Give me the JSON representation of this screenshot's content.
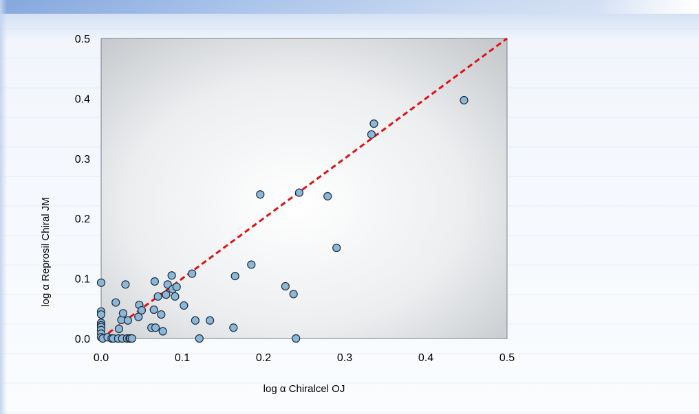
{
  "chart_data": {
    "type": "scatter",
    "xlabel": "log α Chiralcel OJ",
    "ylabel": "log α Reprosil Chiral JM",
    "xlim": [
      0,
      0.5
    ],
    "ylim": [
      0,
      0.5
    ],
    "x_ticks": [
      "0.0",
      "0.1",
      "0.2",
      "0.3",
      "0.4",
      "0.5"
    ],
    "y_ticks": [
      "0.0",
      "0.1",
      "0.2",
      "0.3",
      "0.4",
      "0.5"
    ],
    "grid": false,
    "legend": "none",
    "reference_line": {
      "type": "y=x",
      "color": "#e01010",
      "style": "dashed",
      "from": [
        0,
        0
      ],
      "to": [
        0.5,
        0.5
      ]
    },
    "marker": {
      "fill": "#8ab8d8",
      "stroke": "#1e2a3a"
    },
    "series": [
      {
        "points": [
          [
            0.0,
            0.093
          ],
          [
            0.0,
            0.045
          ],
          [
            0.0,
            0.04
          ],
          [
            0.0,
            0.026
          ],
          [
            0.0,
            0.022
          ],
          [
            0.0,
            0.019
          ],
          [
            0.0,
            0.014
          ],
          [
            0.0,
            0.008
          ],
          [
            0.0,
            0.002
          ],
          [
            0.002,
            0.0
          ],
          [
            0.008,
            0.002
          ],
          [
            0.013,
            0.0
          ],
          [
            0.015,
            0.0
          ],
          [
            0.018,
            0.06
          ],
          [
            0.021,
            0.0
          ],
          [
            0.022,
            0.016
          ],
          [
            0.025,
            0.031
          ],
          [
            0.026,
            0.0
          ],
          [
            0.027,
            0.042
          ],
          [
            0.03,
            0.09
          ],
          [
            0.032,
            0.0
          ],
          [
            0.033,
            0.03
          ],
          [
            0.035,
            0.0
          ],
          [
            0.036,
            0.0
          ],
          [
            0.038,
            0.0
          ],
          [
            0.046,
            0.036
          ],
          [
            0.047,
            0.056
          ],
          [
            0.05,
            0.047
          ],
          [
            0.062,
            0.018
          ],
          [
            0.065,
            0.048
          ],
          [
            0.066,
            0.095
          ],
          [
            0.067,
            0.018
          ],
          [
            0.07,
            0.07
          ],
          [
            0.074,
            0.04
          ],
          [
            0.076,
            0.012
          ],
          [
            0.08,
            0.073
          ],
          [
            0.082,
            0.09
          ],
          [
            0.087,
            0.105
          ],
          [
            0.088,
            0.082
          ],
          [
            0.091,
            0.07
          ],
          [
            0.093,
            0.086
          ],
          [
            0.102,
            0.055
          ],
          [
            0.112,
            0.108
          ],
          [
            0.116,
            0.03
          ],
          [
            0.121,
            0.0
          ],
          [
            0.134,
            0.03
          ],
          [
            0.163,
            0.018
          ],
          [
            0.165,
            0.104
          ],
          [
            0.185,
            0.123
          ],
          [
            0.196,
            0.24
          ],
          [
            0.227,
            0.087
          ],
          [
            0.237,
            0.074
          ],
          [
            0.24,
            0.0
          ],
          [
            0.244,
            0.243
          ],
          [
            0.279,
            0.237
          ],
          [
            0.29,
            0.151
          ],
          [
            0.333,
            0.34
          ],
          [
            0.336,
            0.358
          ],
          [
            0.447,
            0.397
          ]
        ]
      }
    ]
  }
}
